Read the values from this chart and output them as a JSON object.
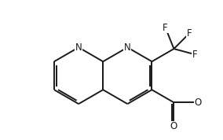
{
  "bg_color": "#ffffff",
  "line_color": "#1a1a1a",
  "lw": 1.4,
  "fs": 8.5,
  "xlim": [
    -0.5,
    5.5
  ],
  "ylim": [
    -2.2,
    2.6
  ],
  "figsize": [
    2.84,
    1.78
  ],
  "dpi": 100
}
